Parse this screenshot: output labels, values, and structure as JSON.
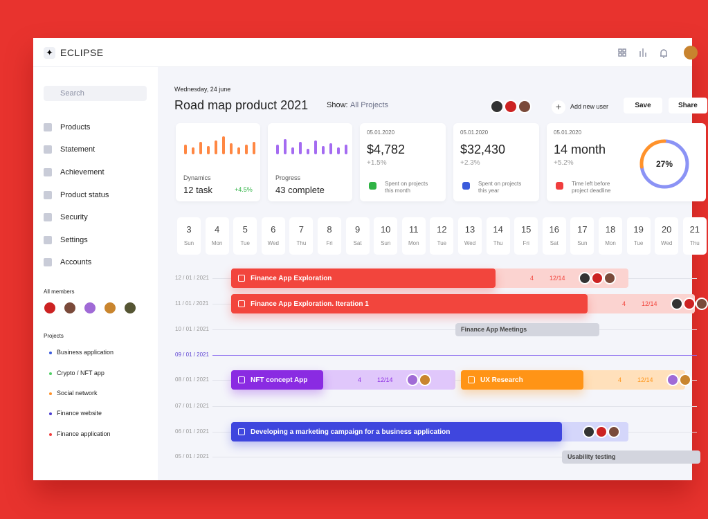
{
  "header": {
    "brand": "ECLIPSE"
  },
  "sidebar": {
    "search": "Search",
    "nav": [
      "Products",
      "Statement",
      "Achievement",
      "Product status",
      "Security",
      "Settings",
      "Accounts"
    ],
    "members_title": "All members",
    "projects_title": "Projects",
    "projects": [
      "Business application",
      "Crypto / NFT app",
      "Social network",
      "Finance website",
      "Finance application"
    ]
  },
  "main": {
    "date": "Wednesday, 24 june",
    "title": "Road map product 2021",
    "show_label": "Show:",
    "show_value": "All Projects",
    "add_user": "Add new user",
    "save": "Save",
    "share": "Share",
    "cards": [
      {
        "label": "Dynamics",
        "value": "12 task",
        "change": "+4.5%"
      },
      {
        "label": "Progress",
        "value": "43 complete"
      },
      {
        "date": "05.01.2020",
        "value": "$4,782",
        "change": "+1.5%",
        "note": "Spent on projects this month"
      },
      {
        "date": "05.01.2020",
        "value": "$32,430",
        "change": "+2.3%",
        "note": "Spent on projects this year"
      },
      {
        "date": "05.01.2020",
        "value": "14 month",
        "change": "+5.2%",
        "note": "Time left before project deadline",
        "donut": {
          "value": 27,
          "label": "27%"
        }
      }
    ],
    "days": [
      [
        "3",
        "Sun"
      ],
      [
        "4",
        "Mon"
      ],
      [
        "5",
        "Tue"
      ],
      [
        "6",
        "Wed"
      ],
      [
        "7",
        "Thu"
      ],
      [
        "8",
        "Fri"
      ],
      [
        "9",
        "Sat"
      ],
      [
        "10",
        "Sun"
      ],
      [
        "11",
        "Mon"
      ],
      [
        "12",
        "Tue"
      ],
      [
        "13",
        "Wed"
      ],
      [
        "14",
        "Thu"
      ],
      [
        "15",
        "Fri"
      ],
      [
        "16",
        "Sat"
      ],
      [
        "17",
        "Sun"
      ],
      [
        "18",
        "Mon"
      ],
      [
        "19",
        "Tue"
      ],
      [
        "20",
        "Wed"
      ],
      [
        "21",
        "Thu"
      ]
    ],
    "rows": [
      "12 / 01 / 2021",
      "11 / 01 / 2021",
      "10 / 01 / 2021",
      "09 / 01 / 2021",
      "08 / 01 / 2021",
      "07 / 01 / 2021",
      "06 / 01 / 2021",
      "05 / 01 / 2021"
    ],
    "tasks": [
      {
        "name": "Finance App Exploration",
        "files": "4",
        "checks": "12/14"
      },
      {
        "name": "Finance App Exploration. Iteration 1",
        "files": "4",
        "checks": "12/14"
      },
      {
        "name": "Finance App Meetings"
      },
      {
        "name": "NFT concept App",
        "files": "4",
        "checks": "12/14"
      },
      {
        "name": "UX Research",
        "files": "4",
        "checks": "12/14"
      },
      {
        "name": "Developing a marketing campaign for a business application"
      },
      {
        "name": "Usability testing"
      }
    ]
  }
}
